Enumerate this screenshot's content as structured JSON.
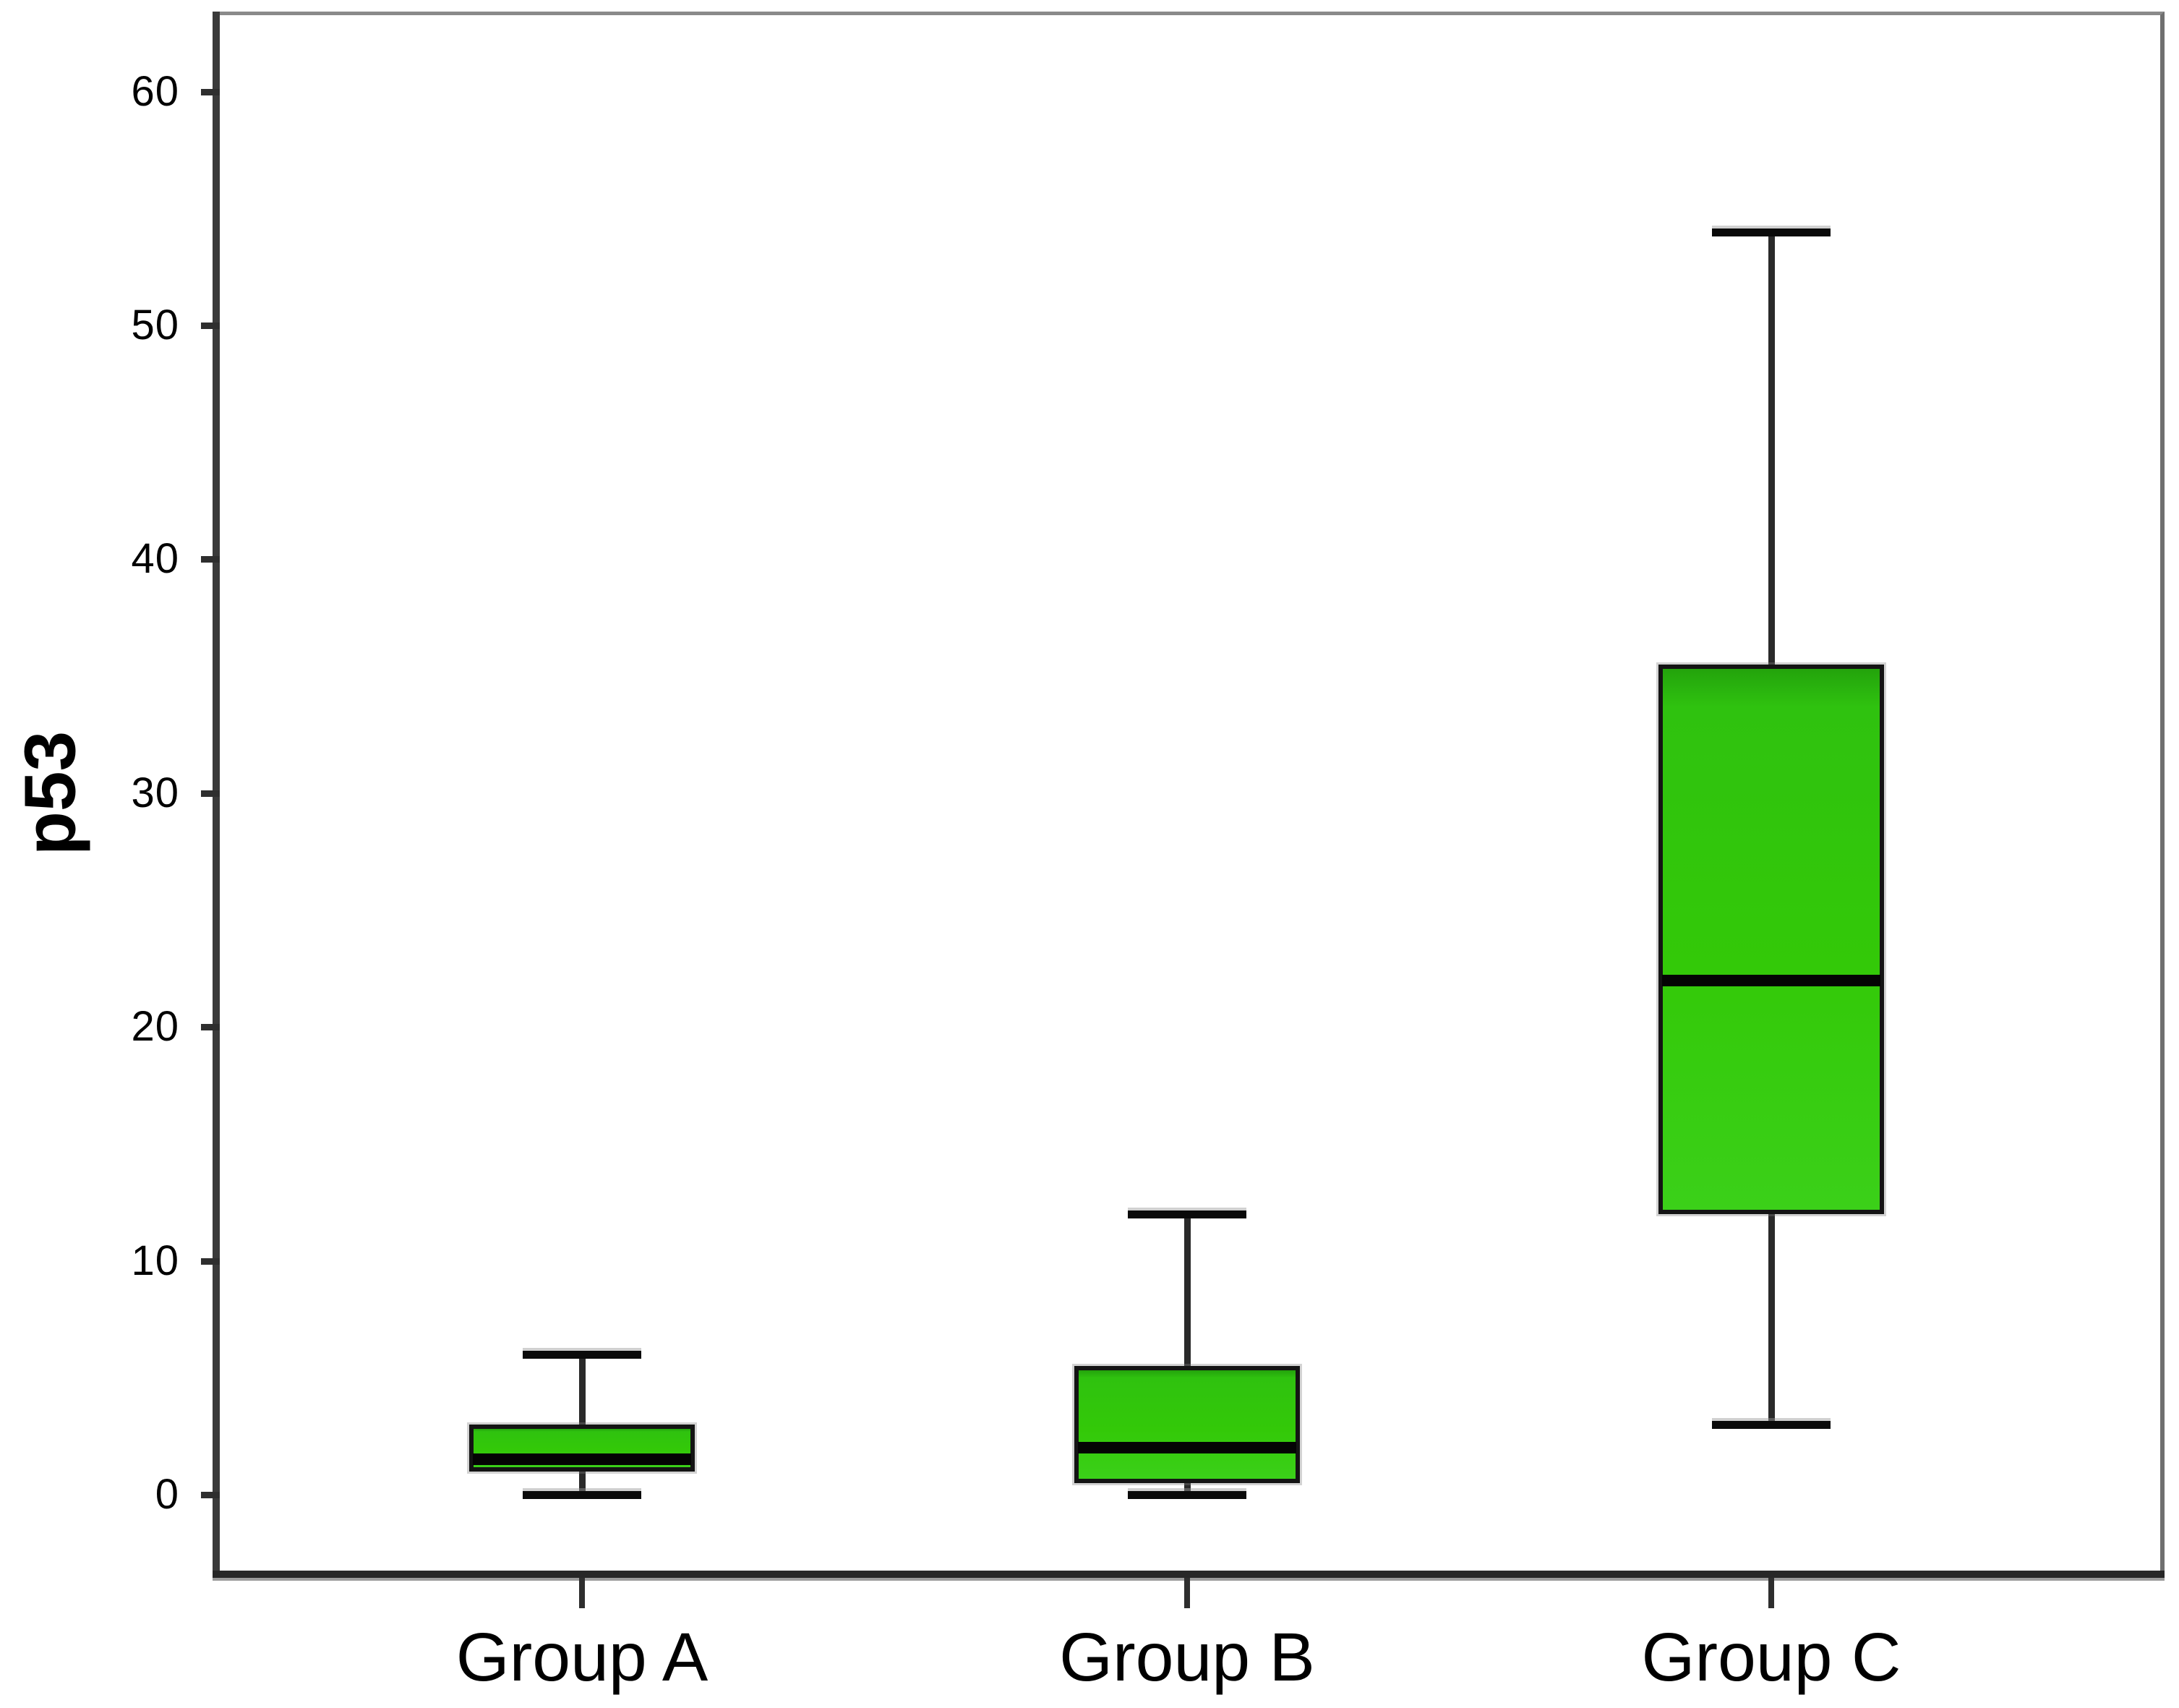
{
  "chart_data": {
    "type": "boxplot",
    "title": "",
    "xlabel": "",
    "ylabel": "p53",
    "categories": [
      "Group A",
      "Group B",
      "Group C"
    ],
    "yticks": [
      0,
      10,
      20,
      30,
      40,
      50,
      60
    ],
    "ylim": [
      -3.3,
      63.4
    ],
    "grid": false,
    "legend": "none",
    "series": [
      {
        "name": "Group A",
        "whisker_low": 0,
        "q1": 1,
        "median": 1.5,
        "q3": 3,
        "whisker_high": 6,
        "outliers": []
      },
      {
        "name": "Group B",
        "whisker_low": 0,
        "q1": 0.5,
        "median": 2,
        "q3": 5.5,
        "whisker_high": 12,
        "outliers": []
      },
      {
        "name": "Group C",
        "whisker_low": 3,
        "q1": 12,
        "median": 22,
        "q3": 35.5,
        "whisker_high": 54,
        "outliers": []
      }
    ],
    "colors": {
      "box_fill": "#33C908",
      "box_border": "#141414",
      "median": "#040404",
      "whisker": "#2A2A2A",
      "axis": "#2E2E2E",
      "frame": "#8A8A8A",
      "text": "#000000",
      "background": "#FFFFFF"
    }
  }
}
